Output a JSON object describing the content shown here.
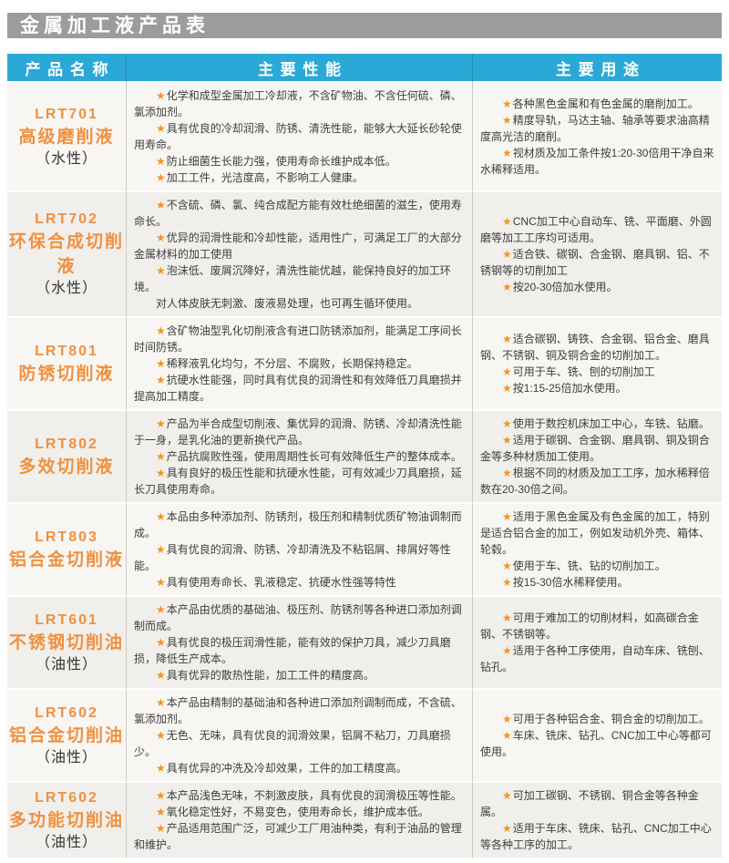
{
  "title": "金属加工液产品表",
  "icons": {
    "bullet": "★"
  },
  "colors": {
    "title_bg": "#9c9c9c",
    "header_bg": "#2ba9d6",
    "accent_orange": "#ef9140",
    "star_orange": "#f5941d",
    "row_bg_a": "#f8f6f3",
    "row_bg_b": "#f1efec",
    "text_color": "#3d3d3d"
  },
  "table": {
    "columns": [
      "产品名称",
      "主要性能",
      "主要用途"
    ],
    "rows": [
      {
        "code": "LRT701",
        "name": "高级磨削液",
        "type": "（水性）",
        "performance": [
          {
            "star": true,
            "text": "化学和成型金属加工冷却液，不含矿物油、不含任何硫、磷、氯添加剂。"
          },
          {
            "star": true,
            "text": "具有优良的冷却润滑、防锈、清洗性能，能够大大延长砂轮使用寿命。"
          },
          {
            "star": true,
            "text": "防止细菌生长能力强，使用寿命长维护成本低。"
          },
          {
            "star": true,
            "text": "加工工件，光洁度高，不影响工人健康。"
          }
        ],
        "uses": [
          {
            "star": true,
            "text": "各种黑色金属和有色金属的磨削加工。"
          },
          {
            "star": true,
            "text": "精度导轨，马达主轴、轴承等要求油高精度高光洁的磨削。"
          },
          {
            "star": true,
            "text": "视材质及加工条件按1:20-30倍用干净自来水稀释适用。"
          }
        ]
      },
      {
        "code": "LRT702",
        "name": "环保合成切削液",
        "type": "（水性）",
        "performance": [
          {
            "star": true,
            "text": "不含硫、磷、氯、纯合成配方能有效杜绝细菌的滋生，使用寿命长。"
          },
          {
            "star": true,
            "text": "优异的润滑性能和冷却性能，适用性广，可满足工厂的大部分金属材料的加工使用"
          },
          {
            "star": true,
            "text": "泡沫低、废屑沉降好，清洗性能优越，能保持良好的加工环境。"
          },
          {
            "star": false,
            "text": "对人体皮肤无刺激、废液易处理，也可再生循环使用。"
          }
        ],
        "uses": [
          {
            "star": true,
            "text": "CNC加工中心自动车、铣、平面磨、外圆磨等加工工序均可适用。"
          },
          {
            "star": true,
            "text": "适合铁、碳钢、合金钢、磨具钢、铝、不锈钢等的切削加工"
          },
          {
            "star": true,
            "text": "按20-30倍加水使用。"
          }
        ]
      },
      {
        "code": "LRT801",
        "name": "防锈切削液",
        "type": "",
        "performance": [
          {
            "star": true,
            "text": "含矿物油型乳化切削液含有进口防锈添加剂，能满足工序间长时间防锈。"
          },
          {
            "star": true,
            "text": "稀释液乳化均匀，不分层、不腐败，长期保持稳定。"
          },
          {
            "star": true,
            "text": "抗硬水性能强，同时具有优良的润滑性和有效降低刀具磨损并提高加工精度。"
          }
        ],
        "uses": [
          {
            "star": true,
            "text": "适合碳钢、铸铁、合金钢、铝合金、磨具钢、不锈钢、铜及铜合金的切削加工。"
          },
          {
            "star": true,
            "text": "可用于车、铣、刨的切削加工"
          },
          {
            "star": true,
            "text": "按1:15-25倍加水使用。"
          }
        ]
      },
      {
        "code": "LRT802",
        "name": "多效切削液",
        "type": "",
        "performance": [
          {
            "star": true,
            "text": "产品为半合成型切削液、集优异的润滑、防锈、冷却清洗性能于一身，是乳化油的更新换代产品。"
          },
          {
            "star": true,
            "text": "产品抗腐败性强，使用周期性长可有效降低生产的整体成本。"
          },
          {
            "star": true,
            "text": "具有良好的极压性能和抗硬水性能，可有效减少刀具磨损，延长刀具使用寿命。"
          }
        ],
        "uses": [
          {
            "star": true,
            "text": "使用于数控机床加工中心，车铣、钻磨。"
          },
          {
            "star": true,
            "text": "适用于碳钢、合金钢、磨具钢、铜及铜合金等多种材质加工使用。"
          },
          {
            "star": true,
            "text": "根据不同的材质及加工工序，加水稀释倍数在20-30倍之间。"
          }
        ]
      },
      {
        "code": "LRT803",
        "name": "铝合金切削液",
        "type": "",
        "performance": [
          {
            "star": true,
            "text": "本品由多种添加剂、防锈剂，极压剂和精制优质矿物油调制而成。"
          },
          {
            "star": true,
            "text": "具有优良的润滑、防锈、冷却清洗及不粘铝屑、排屑好等性能。"
          },
          {
            "star": true,
            "text": "具有使用寿命长、乳液稳定、抗硬水性强等特性"
          }
        ],
        "uses": [
          {
            "star": true,
            "text": "适用于黑色金属及有色金属的加工，特别是适合铝合金的加工，例如发动机外壳、箱体、轮毂。"
          },
          {
            "star": true,
            "text": "使用于车、铣、钻的切削加工。"
          },
          {
            "star": true,
            "text": "按15-30倍水稀释使用。"
          }
        ]
      },
      {
        "code": "LRT601",
        "name": "不锈钢切削油",
        "type": "（油性）",
        "performance": [
          {
            "star": true,
            "text": "本产品由优质的基础油、极压剂、防锈剂等各种进口添加剂调制而成。"
          },
          {
            "star": true,
            "text": "具有优良的极压润滑性能，能有效的保护刀具，减少刀具磨损，降低生产成本。"
          },
          {
            "star": true,
            "text": "具有优异的散热性能，加工工件的精度高。"
          }
        ],
        "uses": [
          {
            "star": true,
            "text": "可用于难加工的切削材料，如高碳合金钢、不锈钢等。"
          },
          {
            "star": true,
            "text": "适用于各种工序使用，自动车床、铣刨、钻孔。"
          }
        ]
      },
      {
        "code": "LRT602",
        "name": "铝合金切削油",
        "type": "（油性）",
        "performance": [
          {
            "star": true,
            "text": "本产品由精制的基础油和各种进口添加剂调制而成，不含硫、氯添加剂。"
          },
          {
            "star": true,
            "text": "无色、无味，具有优良的润滑效果，铝屑不粘刀，刀具磨损少。"
          },
          {
            "star": true,
            "text": "具有优异的冲洗及冷却效果，工件的加工精度高。"
          }
        ],
        "uses": [
          {
            "star": true,
            "text": "可用于各种铝合金、铜合金的切削加工。"
          },
          {
            "star": true,
            "text": "车床、铣床、钻孔、CNC加工中心等都可使用。"
          }
        ]
      },
      {
        "code": "LRT602",
        "name": "多功能切削油",
        "type": "（油性）",
        "performance": [
          {
            "star": true,
            "text": "本产品浅色无味，不刺激皮肤，具有优良的润滑极压等性能。"
          },
          {
            "star": true,
            "text": "氧化稳定性好，不易变色，使用寿命长，维护成本低。"
          },
          {
            "star": true,
            "text": "产品适用范围广泛，可减少工厂用油种类，有利于油品的管理和维护。"
          }
        ],
        "uses": [
          {
            "star": true,
            "text": "可加工碳钢、不锈钢、铜合金等各种金属。"
          },
          {
            "star": true,
            "text": "适用于车床、铣床、钻孔、CNC加工中心等各种工序的加工。"
          }
        ]
      }
    ]
  }
}
